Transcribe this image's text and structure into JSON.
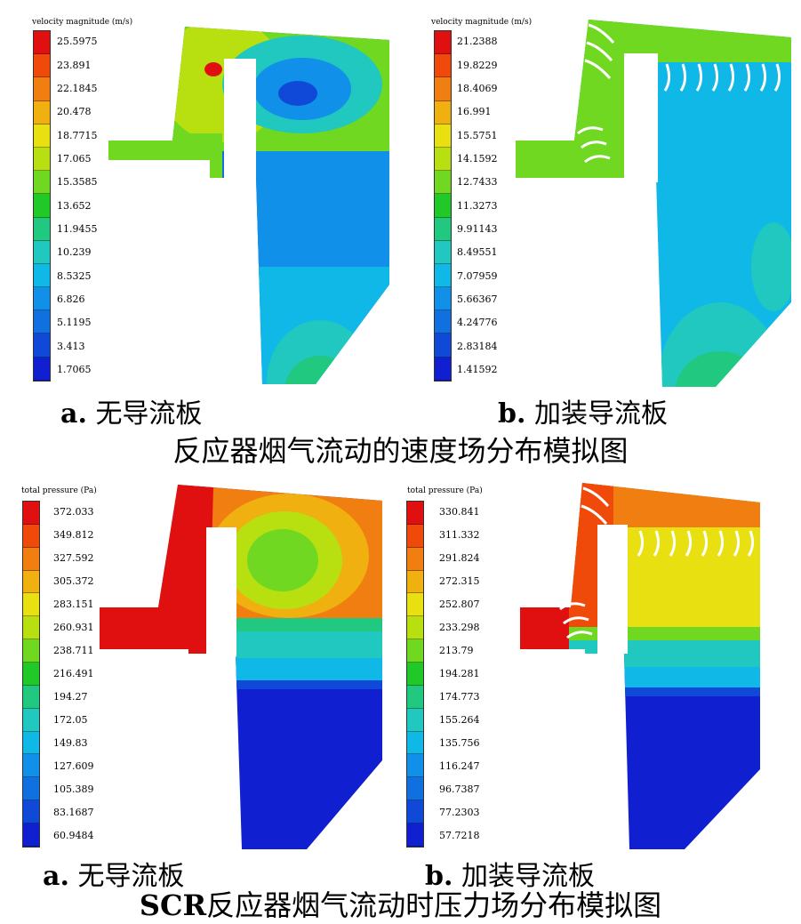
{
  "figure1": {
    "title": "反应器烟气流动的速度场分布模拟图",
    "panel_a": {
      "legend_title": "velocity magnitude (m/s)",
      "ticks": [
        "25.5975",
        "23.891",
        "22.1845",
        "20.478",
        "18.7715",
        "17.065",
        "15.3585",
        "13.652",
        "11.9455",
        "10.239",
        "8.5325",
        "6.826",
        "5.1195",
        "3.413",
        "1.7065"
      ],
      "caption_letter": "a.",
      "caption_text": "无导流板"
    },
    "panel_b": {
      "legend_title": "velocity magnitude (m/s)",
      "ticks": [
        "21.2388",
        "19.8229",
        "18.4069",
        "16.991",
        "15.5751",
        "14.1592",
        "12.7433",
        "11.3273",
        "9.91143",
        "8.49551",
        "7.07959",
        "5.66367",
        "4.24776",
        "2.83184",
        "1.41592"
      ],
      "caption_letter": "b.",
      "caption_text": "加装导流板"
    }
  },
  "figure2": {
    "title_prefix": "SCR",
    "title": "反应器烟气流动时压力场分布模拟图",
    "panel_a": {
      "legend_title": "total pressure (Pa)",
      "ticks": [
        "372.033",
        "349.812",
        "327.592",
        "305.372",
        "283.151",
        "260.931",
        "238.711",
        "216.491",
        "194.27",
        "172.05",
        "149.83",
        "127.609",
        "105.389",
        "83.1687",
        "60.9484"
      ],
      "caption_letter": "a.",
      "caption_text": "无导流板"
    },
    "panel_b": {
      "legend_title": "total pressure (Pa)",
      "ticks": [
        "330.841",
        "311.332",
        "291.824",
        "272.315",
        "252.807",
        "233.298",
        "213.79",
        "194.281",
        "174.773",
        "155.264",
        "135.756",
        "116.247",
        "96.7387",
        "77.2303",
        "57.7218"
      ],
      "caption_letter": "b.",
      "caption_text": "加装导流板"
    }
  },
  "colors": {
    "scale": [
      "#e01010",
      "#f04a0a",
      "#f07e10",
      "#f0b010",
      "#e8e010",
      "#b8e010",
      "#70d820",
      "#20c828",
      "#20c880",
      "#20c8c0",
      "#10b8e8",
      "#1090e8",
      "#1070e0",
      "#1048d8",
      "#1020d0"
    ]
  }
}
